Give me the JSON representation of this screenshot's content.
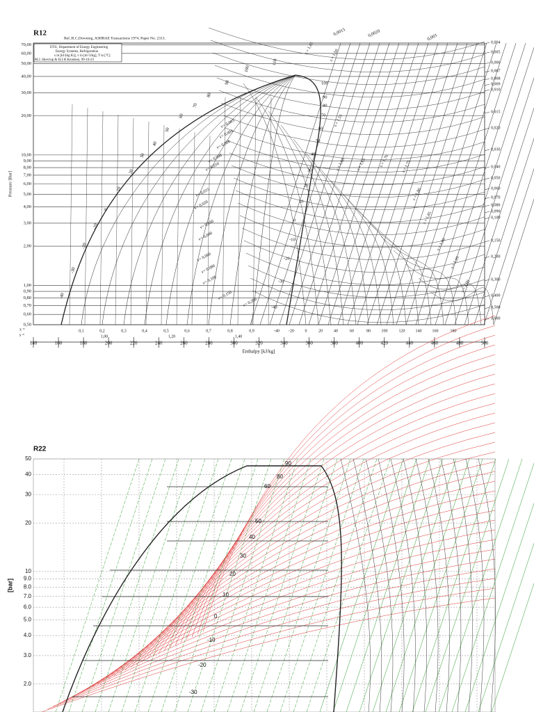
{
  "chart_data": [
    {
      "type": "line",
      "title": "R12",
      "reference": "Ref.:R.C.Downing, ASHRAE Transactions 1974, Paper No. 2313.",
      "info_box": [
        "DTU, Department of Energy Engineering",
        "Energy Systems, Refrigeration",
        "s in [kJ/(kg K)], v in [m^3/kg], T in [ºC]",
        "M.J. Skovrup & H.J.H Knudsen, 99-10-23"
      ],
      "xlabel": "Enthalpy [kJ/kg]",
      "ylabel": "Pressure [Bar]",
      "xlim": [
        140,
        500
      ],
      "xticks": [
        140,
        160,
        180,
        200,
        220,
        240,
        260,
        280,
        300,
        320,
        340,
        360,
        380,
        400,
        420,
        440,
        460,
        480,
        500
      ],
      "ylim": [
        0.5,
        72
      ],
      "log_y": true,
      "yticks": [
        {
          "value": 70,
          "label": "70,00"
        },
        {
          "value": 60,
          "label": "60,00"
        },
        {
          "value": 50,
          "label": "50,00"
        },
        {
          "value": 40,
          "label": "40,00"
        },
        {
          "value": 30,
          "label": "30,00"
        },
        {
          "value": 20,
          "label": "20,00"
        },
        {
          "value": 10,
          "label": "10,00"
        },
        {
          "value": 9,
          "label": "9,00"
        },
        {
          "value": 8,
          "label": "8,00"
        },
        {
          "value": 7,
          "label": "7,00"
        },
        {
          "value": 6,
          "label": "6,00"
        },
        {
          "value": 5,
          "label": "5,00"
        },
        {
          "value": 4,
          "label": "4,00"
        },
        {
          "value": 3,
          "label": "3,00"
        },
        {
          "value": 2,
          "label": "2,00"
        },
        {
          "value": 1,
          "label": "1,00"
        },
        {
          "value": 0.9,
          "label": "0,90"
        },
        {
          "value": 0.8,
          "label": "0,80"
        },
        {
          "value": 0.7,
          "label": "0,70"
        },
        {
          "value": 0.6,
          "label": "0,60"
        },
        {
          "value": 0.5,
          "label": "0,50"
        }
      ],
      "top_volume_labels": [
        "0,0015",
        "0,0020",
        "0,003"
      ],
      "right_volume_labels": [
        "0,004",
        "0,005",
        "0,006",
        "0,007",
        "0,008",
        "0,009",
        "0,010",
        "0,015",
        "0,020",
        "0,030",
        "0,040",
        "0,050",
        "0,060",
        "0,070",
        "0,080",
        "0,090",
        "0,100",
        "0,150",
        "0,200",
        "0,300",
        "0,400",
        "0,500",
        "0,600"
      ],
      "dome_volume_labels": [
        "v= 0,003",
        "v= 0,004",
        "v= 0,006",
        "v= 0,008",
        "v= 0,010",
        "v= 0,015",
        "v= 0,020",
        "v= 0,030",
        "v= 0,040",
        "v= 0,060",
        "v= 0,080",
        "v= 0,100",
        "v= 0,150",
        "v= 0,200"
      ],
      "quality_prefix": "x =",
      "quality_labels": [
        "0,1",
        "0,2",
        "0,3",
        "0,4",
        "0,5",
        "0,6",
        "0,7",
        "0,8",
        "0,9"
      ],
      "entropy_prefix": "s =",
      "entropy_row_labels": [
        "1,00",
        "1,20",
        "1,40"
      ],
      "temperature_row_labels": [
        "-40",
        "-20",
        "0",
        "20",
        "40",
        "60",
        "80",
        "100",
        "120",
        "140",
        "160",
        "180"
      ],
      "left_isotherm_labels": [
        "-40",
        "-30",
        "-20",
        "-10",
        "0",
        "10",
        "20",
        "30",
        "40",
        "50",
        "60",
        "70",
        "80",
        "90",
        "100",
        "110"
      ],
      "right_isotherm_labels": [
        "100",
        "90",
        "80",
        "70",
        "60",
        "50",
        "40",
        "30",
        "20",
        "10",
        "0",
        "-10",
        "-20",
        "-30",
        "-40"
      ],
      "isentrope_labels": [
        "s = 1,45",
        "s = 1,50",
        "s = 1,55",
        "s = 1,60",
        "s = 1,65",
        "s = 1,70",
        "s = 1,75",
        "s = 1,80",
        "s = 1,85",
        "s = 1,90",
        "s = 1,95",
        "s = 2,00"
      ]
    },
    {
      "type": "line",
      "title": "R22",
      "ylabel": "[bar]",
      "ylim": [
        1.34,
        50
      ],
      "log_y": true,
      "grid": true,
      "yticks": [
        50,
        40,
        30,
        20,
        10,
        {
          "value": 9,
          "label": "9.0"
        },
        {
          "value": 8,
          "label": "8.0"
        },
        {
          "value": 7,
          "label": "7.0"
        },
        {
          "value": 6,
          "label": "6.0"
        },
        {
          "value": 5,
          "label": "5.0"
        },
        {
          "value": 4,
          "label": "4.0"
        },
        {
          "value": 3,
          "label": "3.0"
        },
        {
          "value": 2,
          "label": "2.0"
        }
      ],
      "isotherm_labels": [
        "90",
        "80",
        "60",
        "50",
        "40",
        "30",
        "20",
        "10",
        "0",
        "-10",
        "-20",
        "-30"
      ],
      "isotherm_color": "#e03030",
      "isentrope_color": "#2a9a2a"
    }
  ]
}
